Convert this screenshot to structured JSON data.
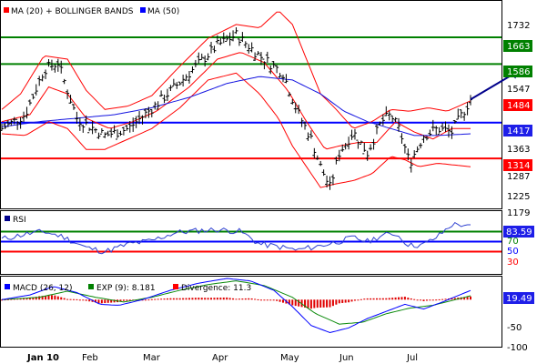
{
  "colors": {
    "green": "#008000",
    "blue": "#0000ff",
    "red": "#ff0000",
    "navy": "#00008b",
    "band": "#ff0000",
    "ma50": "#1414e0",
    "rsi": "#2d3fd0",
    "signal": "#0a8a0a",
    "hist": "#e00000",
    "label_green": "#008000",
    "label_blue": "#1e1ee8",
    "label_red": "#ff0000"
  },
  "chart_data": [
    {
      "type": "line",
      "title": "Price panel",
      "legend": [
        {
          "name": "MA (20) + BOLLINGER BANDS",
          "color": "red"
        },
        {
          "name": "MA (50)",
          "color": "blue"
        }
      ],
      "ylim": [
        1170,
        1760
      ],
      "y_ticks": [
        1732,
        1663,
        1586,
        1547,
        1484,
        1417,
        1363,
        1314,
        1287,
        1225,
        1179
      ],
      "levels": [
        {
          "value": 1663,
          "color": "green",
          "label": "1663"
        },
        {
          "value": 1586,
          "color": "green",
          "label": "1586"
        },
        {
          "value": 1417,
          "color": "blue",
          "label": "1417"
        },
        {
          "value": 1314,
          "color": "red",
          "label": "1314"
        }
      ],
      "current_label": {
        "value": 1484,
        "label": "1484"
      },
      "x_months": [
        "Jan 10",
        "Feb",
        "Mar",
        "Apr",
        "May",
        "Jun",
        "Jul"
      ],
      "anchors": {
        "close": [
          [
            0,
            1400
          ],
          [
            0.05,
            1440
          ],
          [
            0.09,
            1570
          ],
          [
            0.12,
            1590
          ],
          [
            0.16,
            1430
          ],
          [
            0.22,
            1380
          ],
          [
            0.27,
            1400
          ],
          [
            0.33,
            1470
          ],
          [
            0.4,
            1560
          ],
          [
            0.46,
            1640
          ],
          [
            0.5,
            1670
          ],
          [
            0.55,
            1610
          ],
          [
            0.6,
            1560
          ],
          [
            0.63,
            1450
          ],
          [
            0.66,
            1370
          ],
          [
            0.68,
            1290
          ],
          [
            0.7,
            1230
          ],
          [
            0.72,
            1330
          ],
          [
            0.75,
            1390
          ],
          [
            0.78,
            1330
          ],
          [
            0.81,
            1420
          ],
          [
            0.83,
            1440
          ],
          [
            0.85,
            1390
          ],
          [
            0.87,
            1300
          ],
          [
            0.9,
            1380
          ],
          [
            0.93,
            1400
          ],
          [
            0.96,
            1390
          ],
          [
            1.0,
            1484
          ]
        ],
        "ma20": [
          [
            0,
            1420
          ],
          [
            0.06,
            1440
          ],
          [
            0.1,
            1520
          ],
          [
            0.14,
            1500
          ],
          [
            0.18,
            1430
          ],
          [
            0.23,
            1400
          ],
          [
            0.28,
            1420
          ],
          [
            0.33,
            1450
          ],
          [
            0.4,
            1520
          ],
          [
            0.46,
            1600
          ],
          [
            0.51,
            1620
          ],
          [
            0.56,
            1590
          ],
          [
            0.61,
            1510
          ],
          [
            0.65,
            1420
          ],
          [
            0.69,
            1340
          ],
          [
            0.72,
            1350
          ],
          [
            0.76,
            1360
          ],
          [
            0.8,
            1360
          ],
          [
            0.84,
            1420
          ],
          [
            0.88,
            1390
          ],
          [
            0.92,
            1370
          ],
          [
            0.96,
            1400
          ],
          [
            1.0,
            1400
          ]
        ],
        "upper": [
          [
            0,
            1455
          ],
          [
            0.04,
            1500
          ],
          [
            0.09,
            1610
          ],
          [
            0.14,
            1600
          ],
          [
            0.18,
            1510
          ],
          [
            0.22,
            1455
          ],
          [
            0.27,
            1465
          ],
          [
            0.32,
            1495
          ],
          [
            0.38,
            1580
          ],
          [
            0.44,
            1660
          ],
          [
            0.5,
            1700
          ],
          [
            0.55,
            1690
          ],
          [
            0.59,
            1740
          ],
          [
            0.62,
            1700
          ],
          [
            0.65,
            1600
          ],
          [
            0.68,
            1500
          ],
          [
            0.71,
            1460
          ],
          [
            0.75,
            1400
          ],
          [
            0.79,
            1420
          ],
          [
            0.83,
            1455
          ],
          [
            0.87,
            1450
          ],
          [
            0.91,
            1460
          ],
          [
            0.95,
            1450
          ],
          [
            1.0,
            1480
          ]
        ],
        "lower": [
          [
            0,
            1385
          ],
          [
            0.05,
            1380
          ],
          [
            0.1,
            1420
          ],
          [
            0.14,
            1400
          ],
          [
            0.18,
            1340
          ],
          [
            0.22,
            1340
          ],
          [
            0.27,
            1370
          ],
          [
            0.32,
            1400
          ],
          [
            0.38,
            1460
          ],
          [
            0.44,
            1540
          ],
          [
            0.5,
            1560
          ],
          [
            0.55,
            1500
          ],
          [
            0.59,
            1430
          ],
          [
            0.62,
            1350
          ],
          [
            0.65,
            1290
          ],
          [
            0.68,
            1230
          ],
          [
            0.71,
            1240
          ],
          [
            0.75,
            1250
          ],
          [
            0.79,
            1270
          ],
          [
            0.83,
            1320
          ],
          [
            0.86,
            1310
          ],
          [
            0.89,
            1290
          ],
          [
            0.93,
            1300
          ],
          [
            1.0,
            1290
          ]
        ],
        "ma50": [
          [
            0,
            1405
          ],
          [
            0.08,
            1420
          ],
          [
            0.16,
            1430
          ],
          [
            0.24,
            1440
          ],
          [
            0.32,
            1460
          ],
          [
            0.4,
            1490
          ],
          [
            0.48,
            1530
          ],
          [
            0.55,
            1550
          ],
          [
            0.62,
            1540
          ],
          [
            0.68,
            1500
          ],
          [
            0.73,
            1450
          ],
          [
            0.78,
            1420
          ],
          [
            0.83,
            1400
          ],
          [
            0.88,
            1380
          ],
          [
            0.93,
            1380
          ],
          [
            1.0,
            1385
          ]
        ]
      },
      "projection": {
        "from": [
          1.0,
          1484
        ],
        "to": [
          1.1,
          1570
        ]
      }
    },
    {
      "type": "line",
      "title": "RSI panel",
      "legend": [
        {
          "name": "RSI",
          "color": "navy"
        }
      ],
      "ylim": [
        0,
        100
      ],
      "levels": [
        {
          "value": 70,
          "color": "green",
          "label": "70"
        },
        {
          "value": 50,
          "color": "blue",
          "label": "50"
        },
        {
          "value": 30,
          "color": "red",
          "label": "30"
        }
      ],
      "current_label": {
        "value": 83.59,
        "label": "83.59"
      },
      "anchors": {
        "rsi": [
          [
            0,
            55
          ],
          [
            0.05,
            65
          ],
          [
            0.09,
            70
          ],
          [
            0.13,
            60
          ],
          [
            0.18,
            38
          ],
          [
            0.22,
            30
          ],
          [
            0.27,
            45
          ],
          [
            0.32,
            52
          ],
          [
            0.37,
            68
          ],
          [
            0.42,
            72
          ],
          [
            0.46,
            74
          ],
          [
            0.51,
            70
          ],
          [
            0.55,
            45
          ],
          [
            0.59,
            40
          ],
          [
            0.63,
            33
          ],
          [
            0.67,
            40
          ],
          [
            0.71,
            48
          ],
          [
            0.75,
            58
          ],
          [
            0.78,
            50
          ],
          [
            0.81,
            62
          ],
          [
            0.84,
            66
          ],
          [
            0.87,
            42
          ],
          [
            0.9,
            44
          ],
          [
            0.93,
            60
          ],
          [
            0.96,
            84
          ],
          [
            1.0,
            83.59
          ]
        ]
      }
    },
    {
      "type": "line",
      "title": "MACD panel",
      "legend": [
        {
          "name": "MACD (26, 12)",
          "color": "blue"
        },
        {
          "name": "EXP (9): 8.181",
          "color": "green"
        },
        {
          "name": "Divergence: 11.3",
          "color": "red"
        }
      ],
      "ylim": [
        -100,
        45
      ],
      "y_ticks": [
        -50,
        -100
      ],
      "current_label": {
        "value": 19.49,
        "label": "19.49"
      },
      "anchors": {
        "macd": [
          [
            0,
            0
          ],
          [
            0.06,
            10
          ],
          [
            0.11,
            28
          ],
          [
            0.16,
            15
          ],
          [
            0.21,
            -10
          ],
          [
            0.25,
            -12
          ],
          [
            0.3,
            0
          ],
          [
            0.36,
            20
          ],
          [
            0.42,
            35
          ],
          [
            0.48,
            45
          ],
          [
            0.53,
            40
          ],
          [
            0.58,
            20
          ],
          [
            0.62,
            -15
          ],
          [
            0.66,
            -55
          ],
          [
            0.7,
            -70
          ],
          [
            0.74,
            -60
          ],
          [
            0.78,
            -40
          ],
          [
            0.82,
            -25
          ],
          [
            0.86,
            -10
          ],
          [
            0.9,
            -20
          ],
          [
            0.94,
            -5
          ],
          [
            1.0,
            19.49
          ]
        ],
        "signal": [
          [
            0,
            0
          ],
          [
            0.08,
            5
          ],
          [
            0.14,
            18
          ],
          [
            0.2,
            5
          ],
          [
            0.26,
            -5
          ],
          [
            0.32,
            5
          ],
          [
            0.38,
            20
          ],
          [
            0.44,
            32
          ],
          [
            0.5,
            40
          ],
          [
            0.56,
            30
          ],
          [
            0.62,
            5
          ],
          [
            0.67,
            -30
          ],
          [
            0.72,
            -52
          ],
          [
            0.77,
            -48
          ],
          [
            0.82,
            -30
          ],
          [
            0.87,
            -18
          ],
          [
            0.92,
            -12
          ],
          [
            1.0,
            8.181
          ]
        ]
      }
    }
  ],
  "x_axis_labels": [
    "Jan 10",
    "Feb",
    "Mar",
    "Apr",
    "May",
    "Jun",
    "Jul"
  ],
  "price_axis_labels": [
    "1732",
    "1547",
    "1363",
    "1287",
    "1225",
    "1179"
  ]
}
